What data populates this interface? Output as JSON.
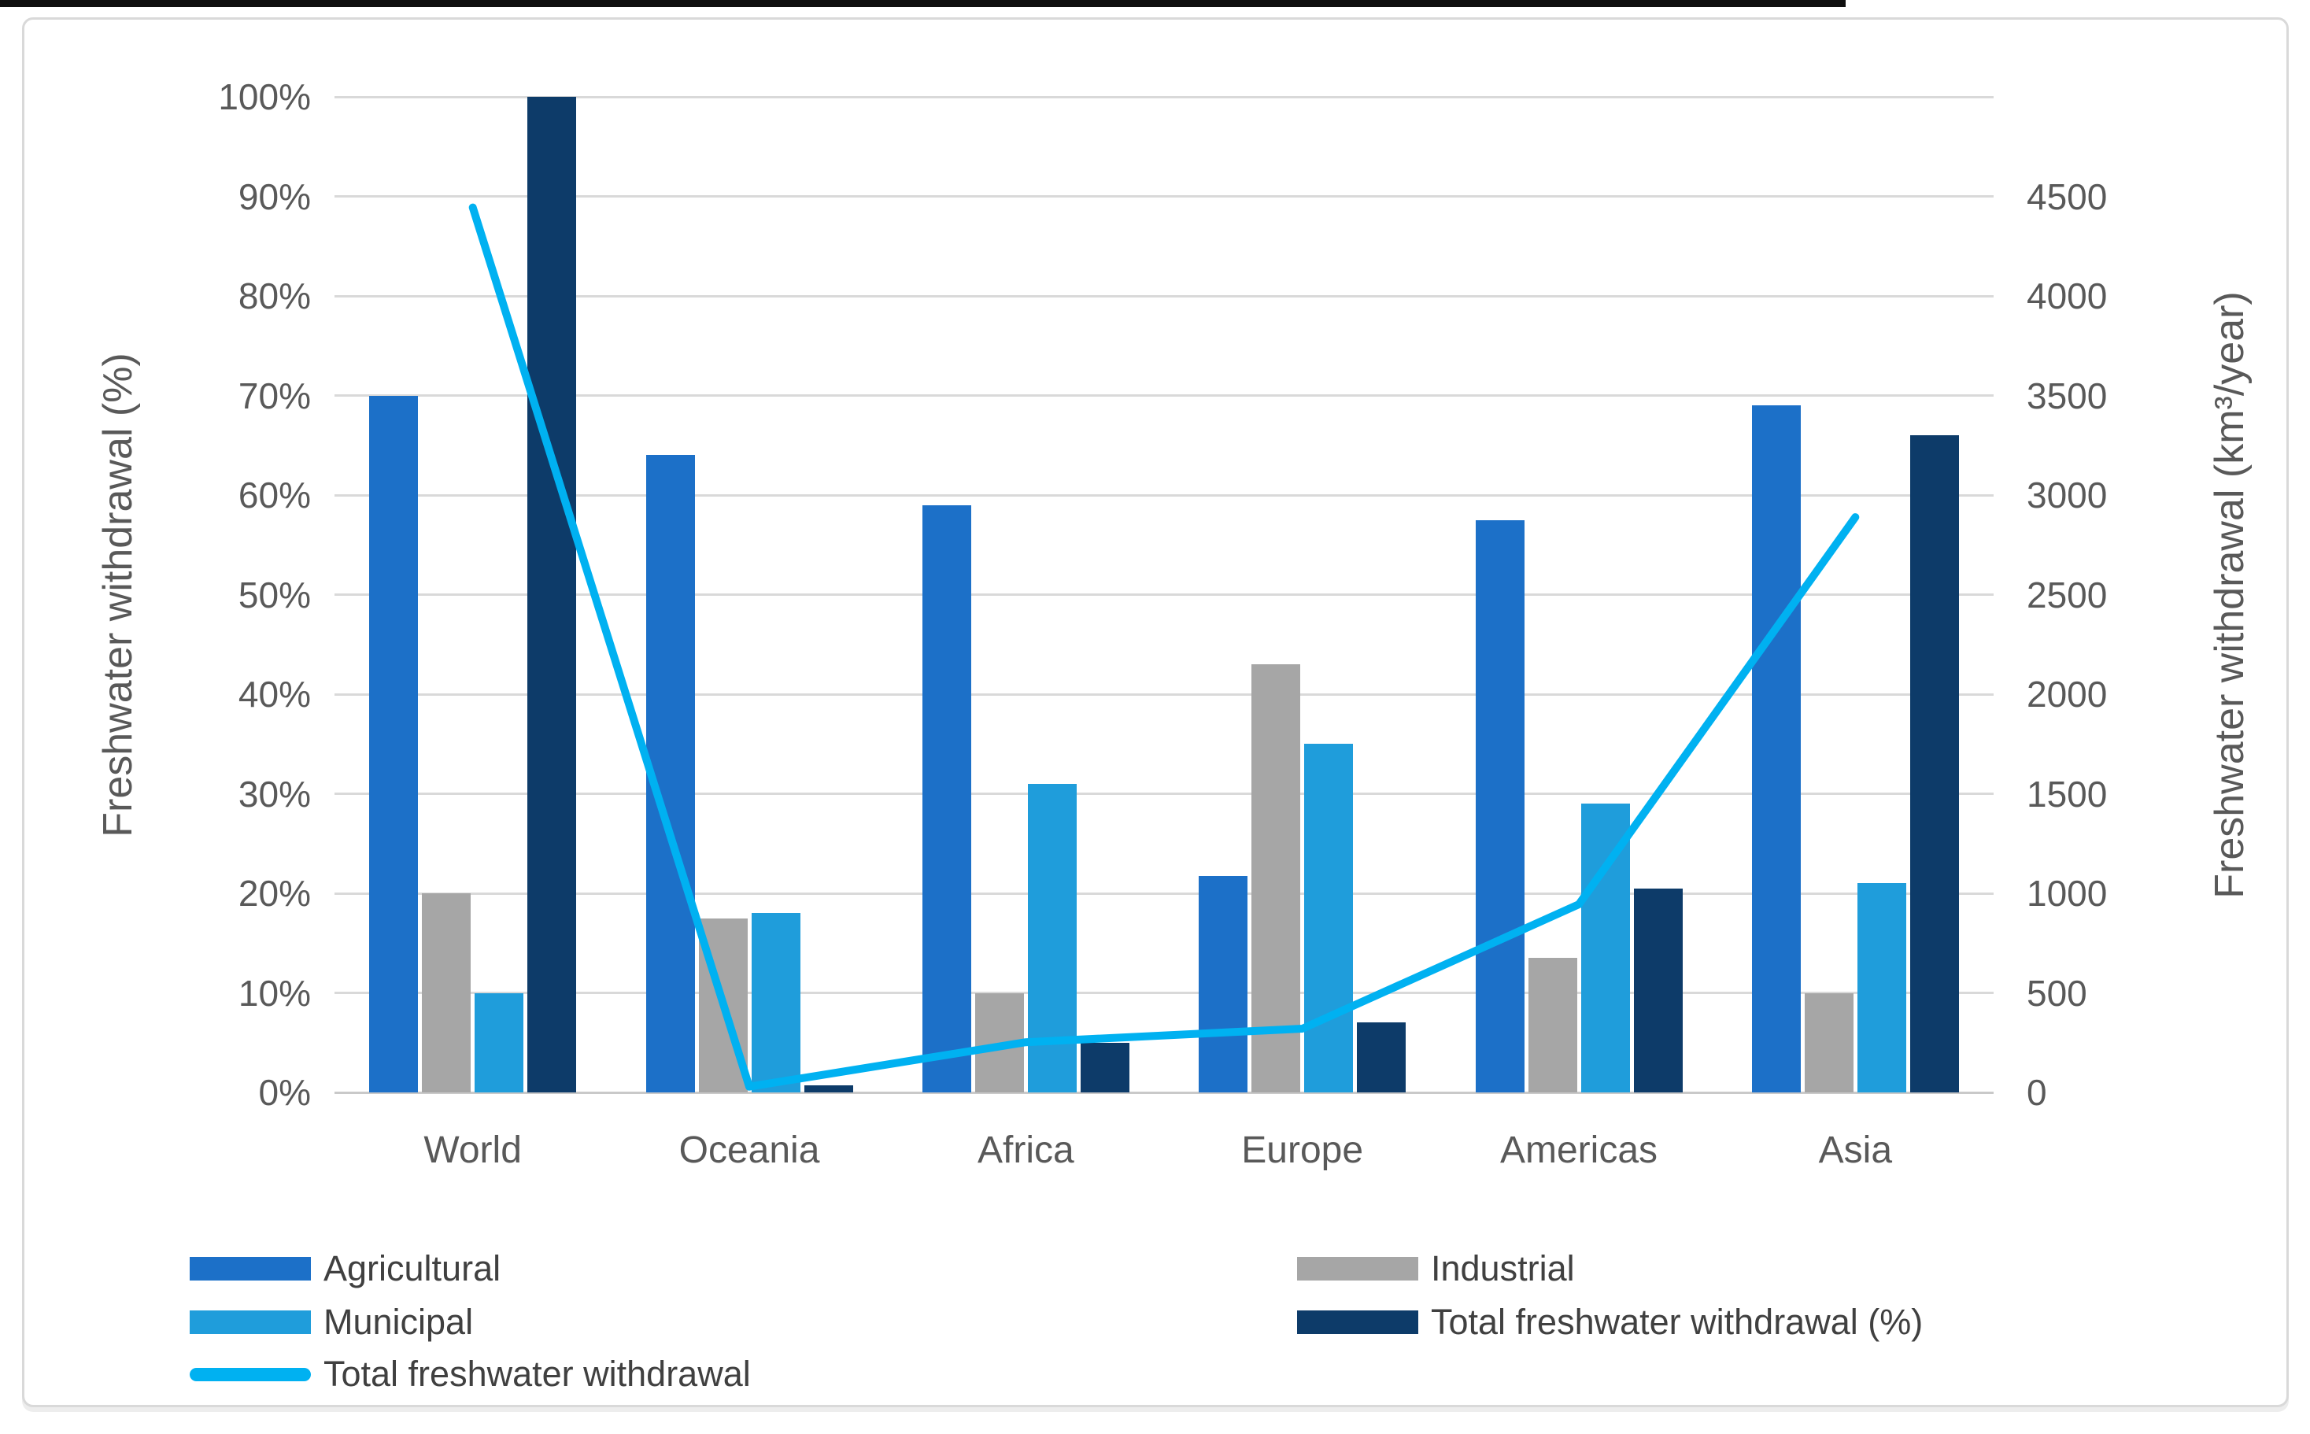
{
  "figure": {
    "background_color": "#ffffff",
    "top_strip_color": "#0f0f0f",
    "panel_border_color": "#d9d9d9",
    "gridline_color": "#d9d9d9",
    "text_color": "#595959",
    "legend_text_color": "#404040"
  },
  "chart_data": {
    "type": "bar",
    "subtype": "grouped-bars-with-line-overlay",
    "categories": [
      "World",
      "Oceania",
      "Africa",
      "Europe",
      "Americas",
      "Asia"
    ],
    "series": [
      {
        "name": "Agricultural",
        "type": "bar",
        "axis": "left",
        "unit": "%",
        "color": "#1c70c8",
        "values": [
          70,
          64,
          59,
          21.7,
          57.5,
          69
        ]
      },
      {
        "name": "Industrial",
        "type": "bar",
        "axis": "left",
        "unit": "%",
        "color": "#a6a6a6",
        "values": [
          20,
          17.5,
          10,
          43,
          13.5,
          10
        ]
      },
      {
        "name": "Municipal",
        "type": "bar",
        "axis": "left",
        "unit": "%",
        "color": "#1f9ddb",
        "values": [
          10,
          18,
          31,
          35,
          29,
          21
        ]
      },
      {
        "name": "Total freshwater withdrawal (%)",
        "type": "bar",
        "axis": "left",
        "unit": "%",
        "color": "#0d3b69",
        "values": [
          100,
          0.7,
          5,
          7,
          20.5,
          66
        ]
      },
      {
        "name": "Total freshwater withdrawal",
        "type": "line",
        "axis": "right",
        "unit": "km3/year",
        "color": "#00b1f1",
        "values": [
          4000,
          26,
          227,
          288,
          850,
          2600
        ]
      }
    ],
    "left_axis": {
      "label": "Freshwater withdrawal (%)",
      "min": 0,
      "max": 100,
      "tick_labels": [
        "0%",
        "10%",
        "20%",
        "30%",
        "40%",
        "50%",
        "60%",
        "70%",
        "80%",
        "90%",
        "100%"
      ]
    },
    "right_axis": {
      "label": "Freshwater withdrawal (km³/year)",
      "min": 0,
      "max": 4500,
      "tick_labels": [
        "0",
        "500",
        "1000",
        "1500",
        "2000",
        "2500",
        "3000",
        "3500",
        "4000",
        "4500"
      ]
    },
    "grid": true,
    "legend_position": "bottom-two-columns"
  },
  "legend": {
    "columns": [
      {
        "items": [
          {
            "label": "Agricultural",
            "swatch": "bar",
            "color": "#1c70c8"
          },
          {
            "label": "Municipal",
            "swatch": "bar",
            "color": "#1f9ddb"
          },
          {
            "label": "Total freshwater withdrawal",
            "swatch": "line",
            "color": "#00b1f1"
          }
        ]
      },
      {
        "items": [
          {
            "label": "Industrial",
            "swatch": "bar",
            "color": "#a6a6a6"
          },
          {
            "label": "Total freshwater withdrawal (%)",
            "swatch": "bar",
            "color": "#0d3b69"
          }
        ]
      }
    ]
  }
}
